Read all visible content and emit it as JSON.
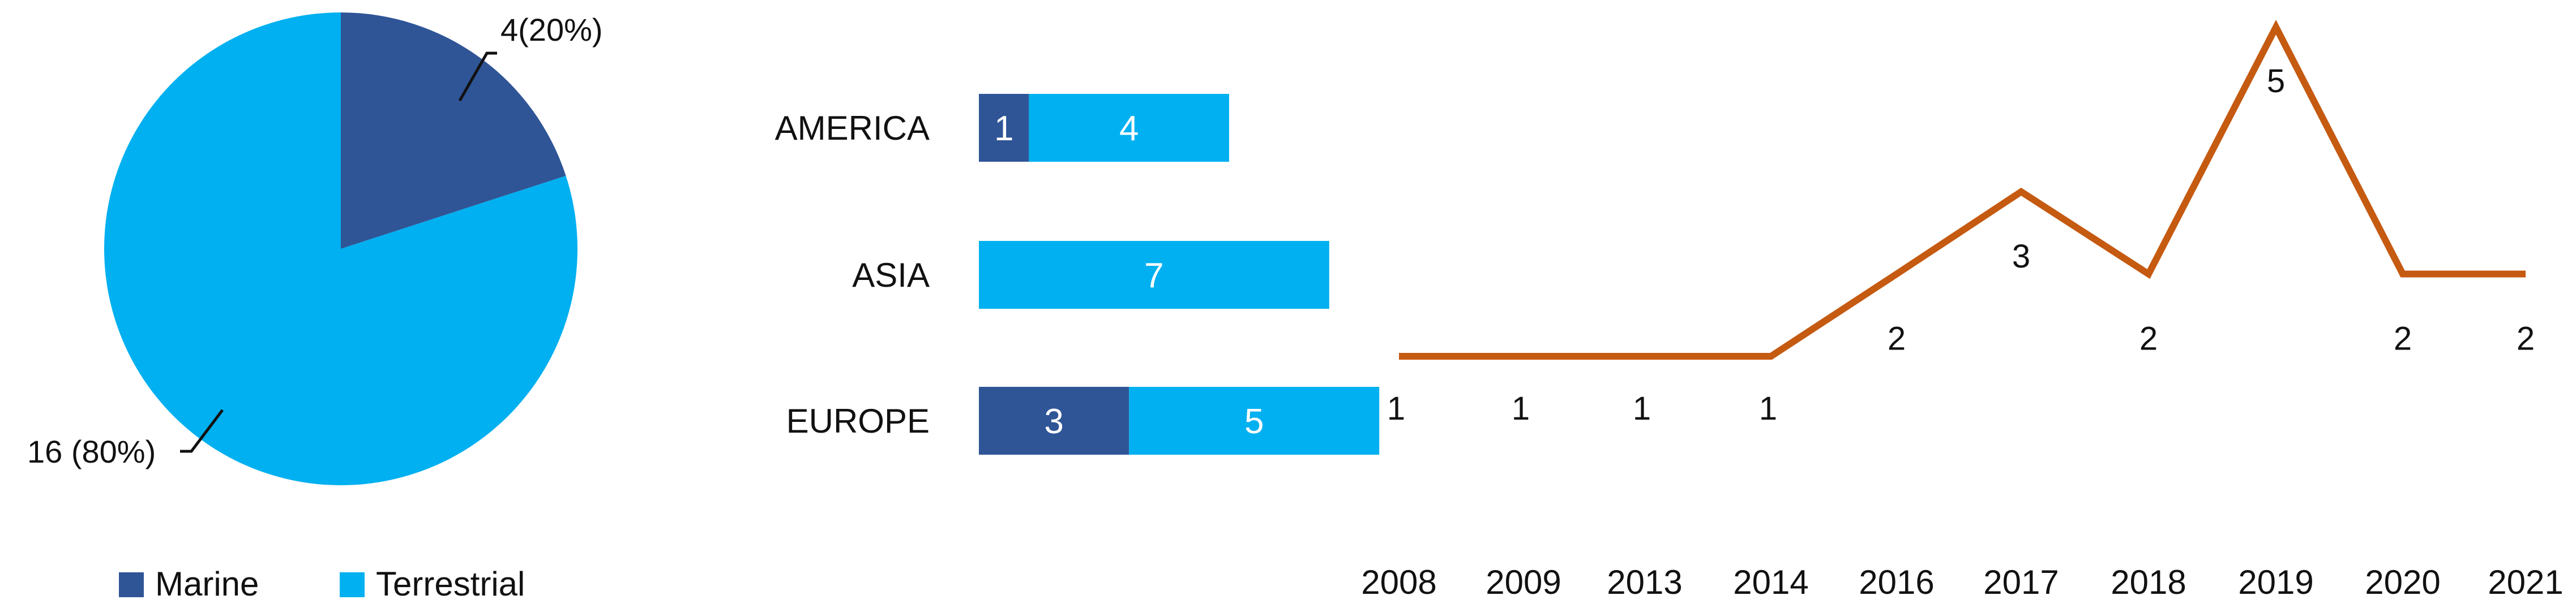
{
  "colors": {
    "marine": "#2f5597",
    "terrestrial": "#00b0f0",
    "line": "#c55a11",
    "text": "#111111",
    "bar_label": "#ffffff"
  },
  "chart_data": [
    {
      "type": "pie",
      "categories": [
        "Marine",
        "Terrestrial"
      ],
      "values": [
        4,
        16
      ],
      "data_labels": [
        "4(20%)",
        "16 (80%)"
      ],
      "colors": [
        "#2f5597",
        "#00b0f0"
      ],
      "start_angle_deg": 0,
      "direction": "clockwise",
      "legend": {
        "position": "bottom",
        "entries": [
          {
            "label": "Marine",
            "color": "#2f5597"
          },
          {
            "label": "Terrestrial",
            "color": "#00b0f0"
          }
        ]
      }
    },
    {
      "type": "bar",
      "orientation": "horizontal",
      "stacked": true,
      "categories": [
        "AMERICA",
        "ASIA",
        "EUROPE"
      ],
      "series": [
        {
          "values": [
            1,
            0,
            3
          ],
          "color": "#2f5597"
        },
        {
          "values": [
            4,
            7,
            5
          ],
          "color": "#00b0f0"
        }
      ],
      "data_labels": [
        [
          "1",
          "4"
        ],
        [
          "7"
        ],
        [
          "3",
          "5"
        ]
      ],
      "xlim": [
        0,
        8
      ],
      "grid": false
    },
    {
      "type": "line",
      "x": [
        "2008",
        "2009",
        "2013",
        "2014",
        "2016",
        "2017",
        "2018",
        "2019",
        "2020",
        "2021"
      ],
      "values": [
        1,
        1,
        1,
        1,
        2,
        3,
        2,
        5,
        2,
        2
      ],
      "data_labels": [
        "1",
        "1",
        "1",
        "1",
        "2",
        "3",
        "2",
        "5",
        "2",
        "2"
      ],
      "color": "#c55a11",
      "ylim": [
        1,
        5
      ],
      "grid": false
    }
  ]
}
